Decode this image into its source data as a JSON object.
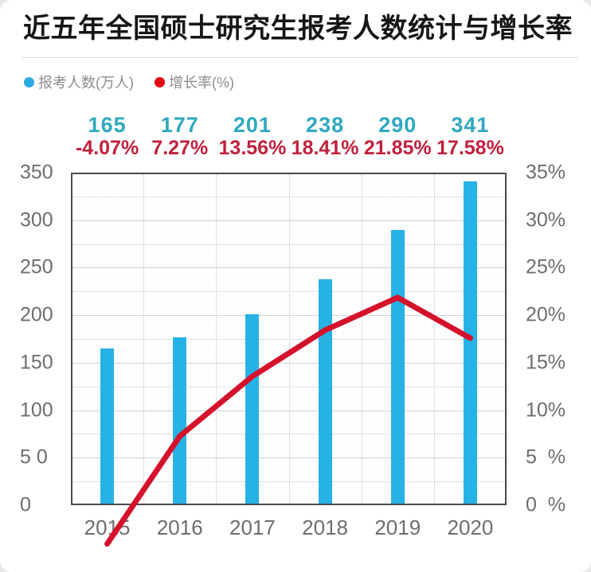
{
  "page": {
    "title": "近五年全国硕士研究生报考人数统计与增长率"
  },
  "legend": {
    "items": [
      {
        "label": "报考人数(万人)",
        "color": "#29ABE2"
      },
      {
        "label": "增长率(%)",
        "color": "#E30613"
      }
    ]
  },
  "colors": {
    "bar": "#27B2E5",
    "line": "#D5122B",
    "value_label": "#2FA9BF",
    "pct_label": "#C1203C",
    "axis_text": "#6d6d6d"
  },
  "chart_data": {
    "type": "bar",
    "categories": [
      "2015",
      "2016",
      "2017",
      "2018",
      "2019",
      "2020"
    ],
    "series": [
      {
        "name": "报考人数(万人)",
        "type": "bar",
        "axis": "left",
        "color": "#27B2E5",
        "values": [
          165,
          177,
          201,
          238,
          290,
          341
        ]
      },
      {
        "name": "增长率(%)",
        "type": "line",
        "axis": "right",
        "color": "#D5122B",
        "values": [
          -4.07,
          7.27,
          13.56,
          18.41,
          21.85,
          17.58
        ]
      }
    ],
    "value_labels": [
      "165",
      "177",
      "201",
      "238",
      "290",
      "341"
    ],
    "pct_labels": [
      "-4.07%",
      "7.27%",
      "13.56%",
      "18.41%",
      "21.85%",
      "17.58%"
    ],
    "left_axis": {
      "min": 0,
      "max": 350,
      "step": 50,
      "ticks": [
        "350",
        "300",
        "250",
        "200",
        "150",
        "100",
        "5 0",
        "0"
      ]
    },
    "right_axis": {
      "min": 0,
      "max": 35,
      "step": 5,
      "ticks": [
        "35%",
        "30%",
        "25%",
        "20%",
        "15%",
        "10%",
        "5  %",
        "0  %"
      ]
    },
    "title": "近五年全国硕士研究生报考人数统计与增长率",
    "grid": true,
    "legend_position": "top-left"
  }
}
